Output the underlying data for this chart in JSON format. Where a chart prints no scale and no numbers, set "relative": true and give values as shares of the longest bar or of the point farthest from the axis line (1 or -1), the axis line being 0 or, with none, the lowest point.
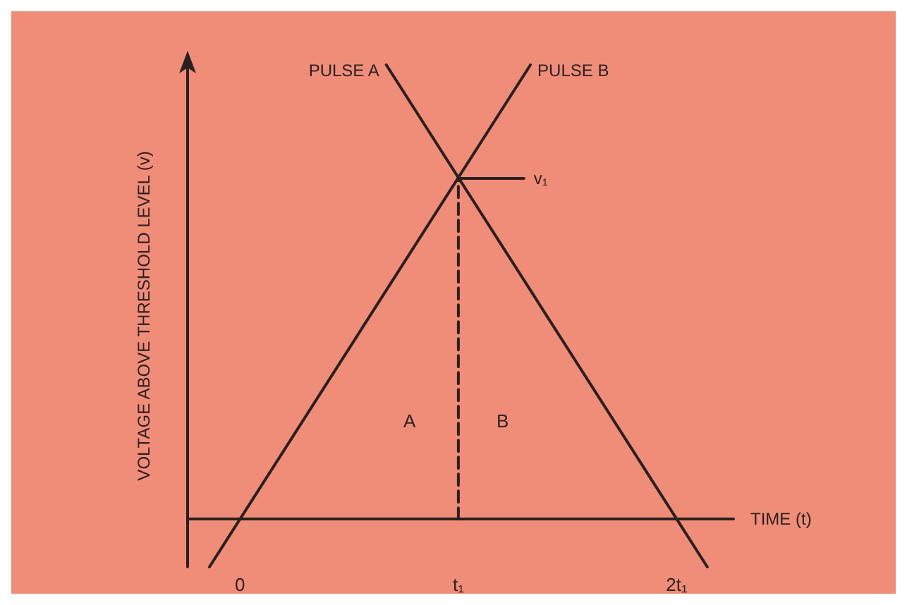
{
  "chart_data": {
    "type": "line",
    "relative": true,
    "xlabel": "TIME (t)",
    "ylabel": "VOLTAGE ABOVE THRESHOLD LEVEL (v)",
    "xlim": [
      -0.24,
      2.26
    ],
    "xticks": [
      {
        "value": 0,
        "label": "0"
      },
      {
        "value": 1,
        "label": "t₁"
      },
      {
        "value": 2,
        "label": "2t₁"
      }
    ],
    "series": [
      {
        "name": "PULSE A",
        "color": "#2b1f1f",
        "x": [
          0.67,
          2.14
        ],
        "values": [
          1,
          -0.105
        ]
      },
      {
        "name": "PULSE B",
        "color": "#2b1f1f",
        "x": [
          -0.14,
          1.33
        ],
        "values": [
          -0.105,
          1
        ]
      },
      {
        "color": "#2b1f1f",
        "x": [
          1,
          1
        ],
        "values": [
          0,
          0.75
        ],
        "line_style": "dashed"
      },
      {
        "name": "v₁",
        "color": "#2b1f1f",
        "x": [
          1,
          1.3
        ],
        "values": [
          0.75,
          0.75
        ]
      }
    ],
    "annotations": [
      "A",
      "B"
    ],
    "legend": false,
    "grid": false,
    "marker": "none",
    "line_style": "solid"
  }
}
